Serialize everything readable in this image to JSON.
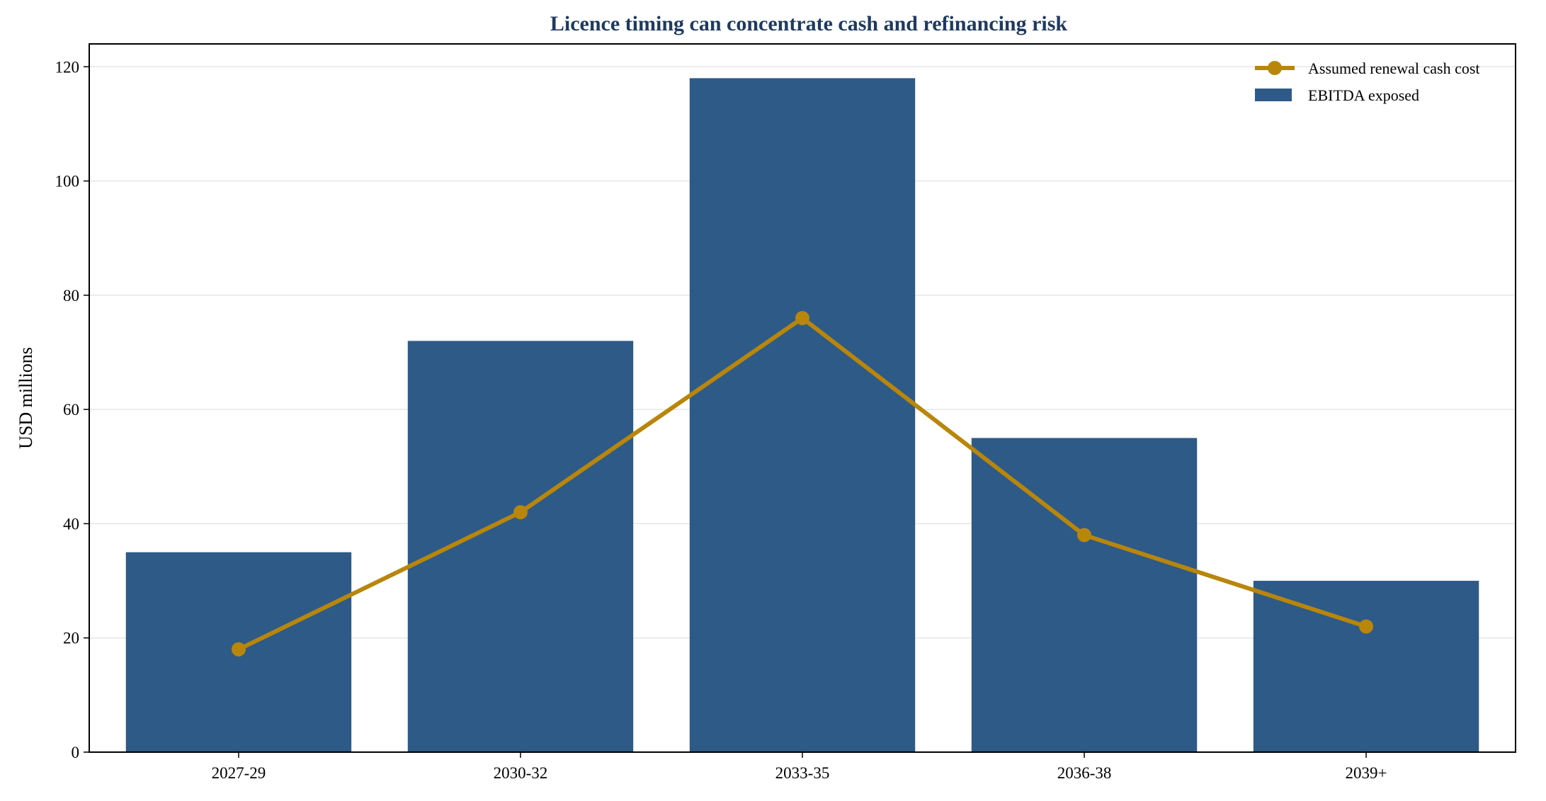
{
  "chart_data": {
    "type": "bar",
    "title": "Licence timing can concentrate cash and refinancing risk",
    "xlabel": "",
    "ylabel": "USD millions",
    "categories": [
      "2027-29",
      "2030-32",
      "2033-35",
      "2036-38",
      "2039+"
    ],
    "ylim": [
      0,
      124
    ],
    "yticks": [
      0,
      20,
      40,
      60,
      80,
      100,
      120
    ],
    "grid": "horizontal",
    "legend_position": "top-right",
    "series": [
      {
        "name": "EBITDA exposed",
        "kind": "bar",
        "color": "#2e5a87",
        "values": [
          35,
          72,
          118,
          55,
          30
        ]
      },
      {
        "name": "Assumed renewal cash cost",
        "kind": "line",
        "color": "#b8860b",
        "values": [
          18,
          42,
          76,
          38,
          22
        ]
      }
    ],
    "legend": [
      {
        "label": "Assumed renewal cash cost",
        "marker": "line",
        "color": "#b8860b"
      },
      {
        "label": "EBITDA exposed",
        "marker": "bar",
        "color": "#2e5a87"
      }
    ],
    "title_color": "#1f3a5f"
  }
}
